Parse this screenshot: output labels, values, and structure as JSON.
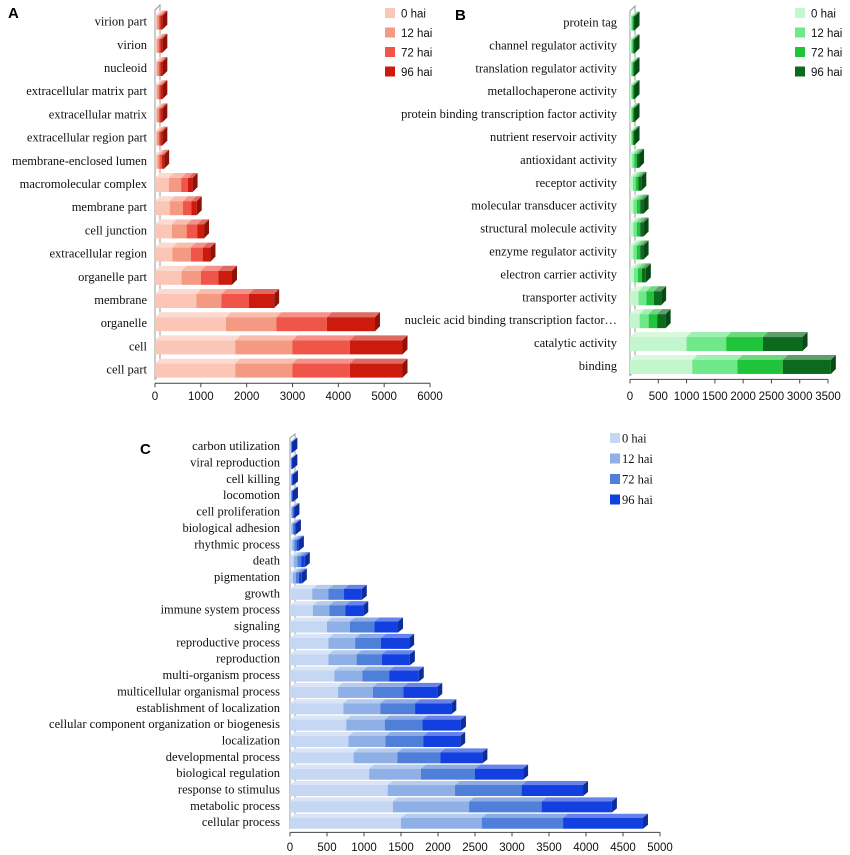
{
  "chart_data": [
    {
      "type": "bar",
      "orientation": "horizontal",
      "stacked": true,
      "panel_label": "A",
      "categories": [
        "virion part",
        "virion",
        "nucleoid",
        "extracellular matrix part",
        "extracellular matrix",
        "extracellular region part",
        "membrane-enclosed lumen",
        "macromolecular complex",
        "membrane part",
        "cell junction",
        "extracellular region",
        "organelle part",
        "membrane",
        "organelle",
        "cell",
        "cell part"
      ],
      "series": [
        {
          "name": "0 hai",
          "color": "#fbc6b6",
          "values": [
            40,
            40,
            40,
            40,
            40,
            40,
            50,
            300,
            320,
            370,
            380,
            580,
            900,
            1550,
            1750,
            1750
          ]
        },
        {
          "name": "12 hai",
          "color": "#f59a82",
          "values": [
            40,
            40,
            40,
            40,
            40,
            40,
            50,
            270,
            290,
            320,
            400,
            420,
            550,
            1100,
            1250,
            1250
          ]
        },
        {
          "name": "72 hai",
          "color": "#ef5548",
          "values": [
            40,
            40,
            40,
            40,
            40,
            40,
            50,
            150,
            180,
            230,
            260,
            380,
            600,
            1100,
            1250,
            1250
          ]
        },
        {
          "name": "96 hai",
          "color": "#cc1a0c",
          "values": [
            40,
            40,
            40,
            40,
            40,
            40,
            50,
            100,
            120,
            150,
            170,
            300,
            550,
            1050,
            1150,
            1150
          ]
        }
      ],
      "xlim": [
        0,
        6000
      ],
      "xticks": [
        "0",
        "1000",
        "2000",
        "3000",
        "4000",
        "5000",
        "6000"
      ],
      "legend_position": "top-right"
    },
    {
      "type": "bar",
      "orientation": "horizontal",
      "stacked": true,
      "panel_label": "B",
      "categories": [
        "protein tag",
        "channel regulator activity",
        "translation regulator activity",
        "metallochaperone activity",
        "protein binding transcription factor activity",
        "nutrient reservoir activity",
        "antioxidant activity",
        "receptor activity",
        "molecular transducer activity",
        "structural molecule activity",
        "enzyme regulator activity",
        "electron carrier activity",
        "transporter activity",
        "nucleic acid binding transcription factor…",
        "catalytic activity",
        "binding"
      ],
      "series": [
        {
          "name": "0 hai",
          "color": "#c3f6cc",
          "values": [
            20,
            20,
            20,
            20,
            20,
            20,
            40,
            50,
            60,
            60,
            60,
            70,
            150,
            170,
            1000,
            1100
          ]
        },
        {
          "name": "12 hai",
          "color": "#6fe88a",
          "values": [
            20,
            20,
            20,
            20,
            20,
            20,
            40,
            50,
            60,
            60,
            60,
            70,
            140,
            160,
            700,
            800
          ]
        },
        {
          "name": "72 hai",
          "color": "#1fc43a",
          "values": [
            20,
            20,
            20,
            20,
            20,
            20,
            40,
            50,
            60,
            60,
            60,
            70,
            130,
            150,
            650,
            800
          ]
        },
        {
          "name": "96 hai",
          "color": "#0b6a1d",
          "values": [
            20,
            20,
            20,
            20,
            20,
            20,
            40,
            50,
            60,
            60,
            60,
            70,
            130,
            150,
            700,
            850
          ]
        }
      ],
      "xlim": [
        0,
        3500
      ],
      "xticks": [
        "0",
        "500",
        "1000",
        "1500",
        "2000",
        "2500",
        "3000",
        "3500"
      ],
      "legend_position": "top-right"
    },
    {
      "type": "bar",
      "orientation": "horizontal",
      "stacked": true,
      "panel_label": "C",
      "categories": [
        "carbon utilization",
        "viral reproduction",
        "cell killing",
        "locomotion",
        "cell proliferation",
        "biological adhesion",
        "rhythmic process",
        "death",
        "pigmentation",
        "growth",
        "immune system process",
        "signaling",
        "reproductive process",
        "reproduction",
        "multi-organism process",
        "multicellular organismal process",
        "establishment of localization",
        "cellular component organization or biogenesis",
        "localization",
        "developmental process",
        "biological regulation",
        "response to stimulus",
        "metabolic process",
        "cellular process"
      ],
      "series": [
        {
          "name": "0 hai",
          "color": "#c5d7f2",
          "values": [
            8,
            8,
            10,
            10,
            15,
            20,
            30,
            50,
            40,
            300,
            310,
            500,
            520,
            520,
            600,
            650,
            720,
            760,
            790,
            860,
            1070,
            1320,
            1390,
            1500
          ]
        },
        {
          "name": "12 hai",
          "color": "#8eb0e6",
          "values": [
            8,
            8,
            10,
            10,
            15,
            20,
            30,
            50,
            40,
            220,
            220,
            310,
            360,
            380,
            380,
            470,
            500,
            520,
            500,
            590,
            700,
            910,
            1030,
            1090
          ]
        },
        {
          "name": "72 hai",
          "color": "#4f7fd8",
          "values": [
            8,
            8,
            10,
            10,
            15,
            20,
            30,
            50,
            40,
            210,
            220,
            330,
            350,
            340,
            360,
            410,
            470,
            510,
            510,
            580,
            730,
            900,
            980,
            1100
          ]
        },
        {
          "name": "96 hai",
          "color": "#1240e0",
          "values": [
            8,
            8,
            10,
            10,
            15,
            20,
            30,
            50,
            40,
            240,
            240,
            320,
            380,
            380,
            400,
            460,
            490,
            520,
            500,
            570,
            650,
            830,
            950,
            1080
          ]
        }
      ],
      "xlim": [
        0,
        5000
      ],
      "xticks": [
        "0",
        "500",
        "1000",
        "1500",
        "2000",
        "2500",
        "3000",
        "3500",
        "4000",
        "4500",
        "5000"
      ],
      "legend_position": "top-right"
    }
  ]
}
